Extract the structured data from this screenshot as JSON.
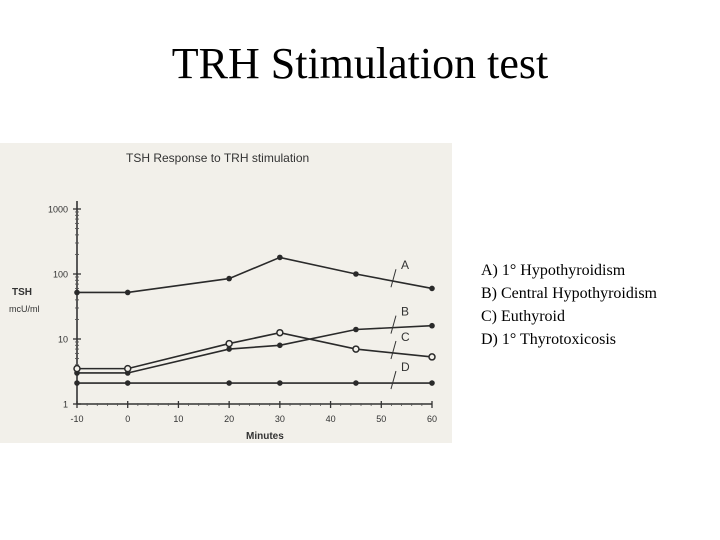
{
  "slide": {
    "title": "TRH Stimulation test"
  },
  "legend_items": [
    "A) 1° Hypothyroidism",
    "B) Central Hypothyroidism",
    "C) Euthyroid",
    "D) 1° Thyrotoxicosis"
  ],
  "chart_data": {
    "type": "line",
    "title": "TSH Response to TRH stimulation",
    "xlabel": "Minutes",
    "ylabel": [
      "TSH",
      "mcU/ml"
    ],
    "yscale": "log",
    "xlim": [
      -10,
      60
    ],
    "ylim": [
      1,
      1000
    ],
    "xticks": [
      -10,
      0,
      10,
      20,
      30,
      40,
      50,
      60
    ],
    "xtick_labels": [
      "-10",
      "0",
      "10",
      "20",
      "30",
      "40",
      "50",
      "60"
    ],
    "yticks": [
      1,
      10,
      100,
      1000
    ],
    "ytick_labels": [
      "1",
      "10",
      "100",
      "1000"
    ],
    "grid": false,
    "series": [
      {
        "name": "A",
        "marker": "filled",
        "points": [
          [
            -10,
            52
          ],
          [
            0,
            52
          ],
          [
            20,
            85
          ],
          [
            30,
            180
          ],
          [
            45,
            100
          ],
          [
            60,
            60
          ]
        ]
      },
      {
        "name": "B",
        "marker": "filled",
        "points": [
          [
            -10,
            3.0
          ],
          [
            0,
            3.0
          ],
          [
            20,
            7.0
          ],
          [
            30,
            8.0
          ],
          [
            45,
            14.0
          ],
          [
            60,
            16.0
          ]
        ]
      },
      {
        "name": "C",
        "marker": "open",
        "points": [
          [
            -10,
            3.5
          ],
          [
            0,
            3.5
          ],
          [
            20,
            8.5
          ],
          [
            30,
            12.5
          ],
          [
            45,
            7.0
          ],
          [
            60,
            5.3
          ]
        ]
      },
      {
        "name": "D",
        "marker": "filled",
        "points": [
          [
            -10,
            2.1
          ],
          [
            0,
            2.1
          ],
          [
            20,
            2.1
          ],
          [
            30,
            2.1
          ],
          [
            45,
            2.1
          ],
          [
            60,
            2.1
          ]
        ]
      }
    ]
  }
}
